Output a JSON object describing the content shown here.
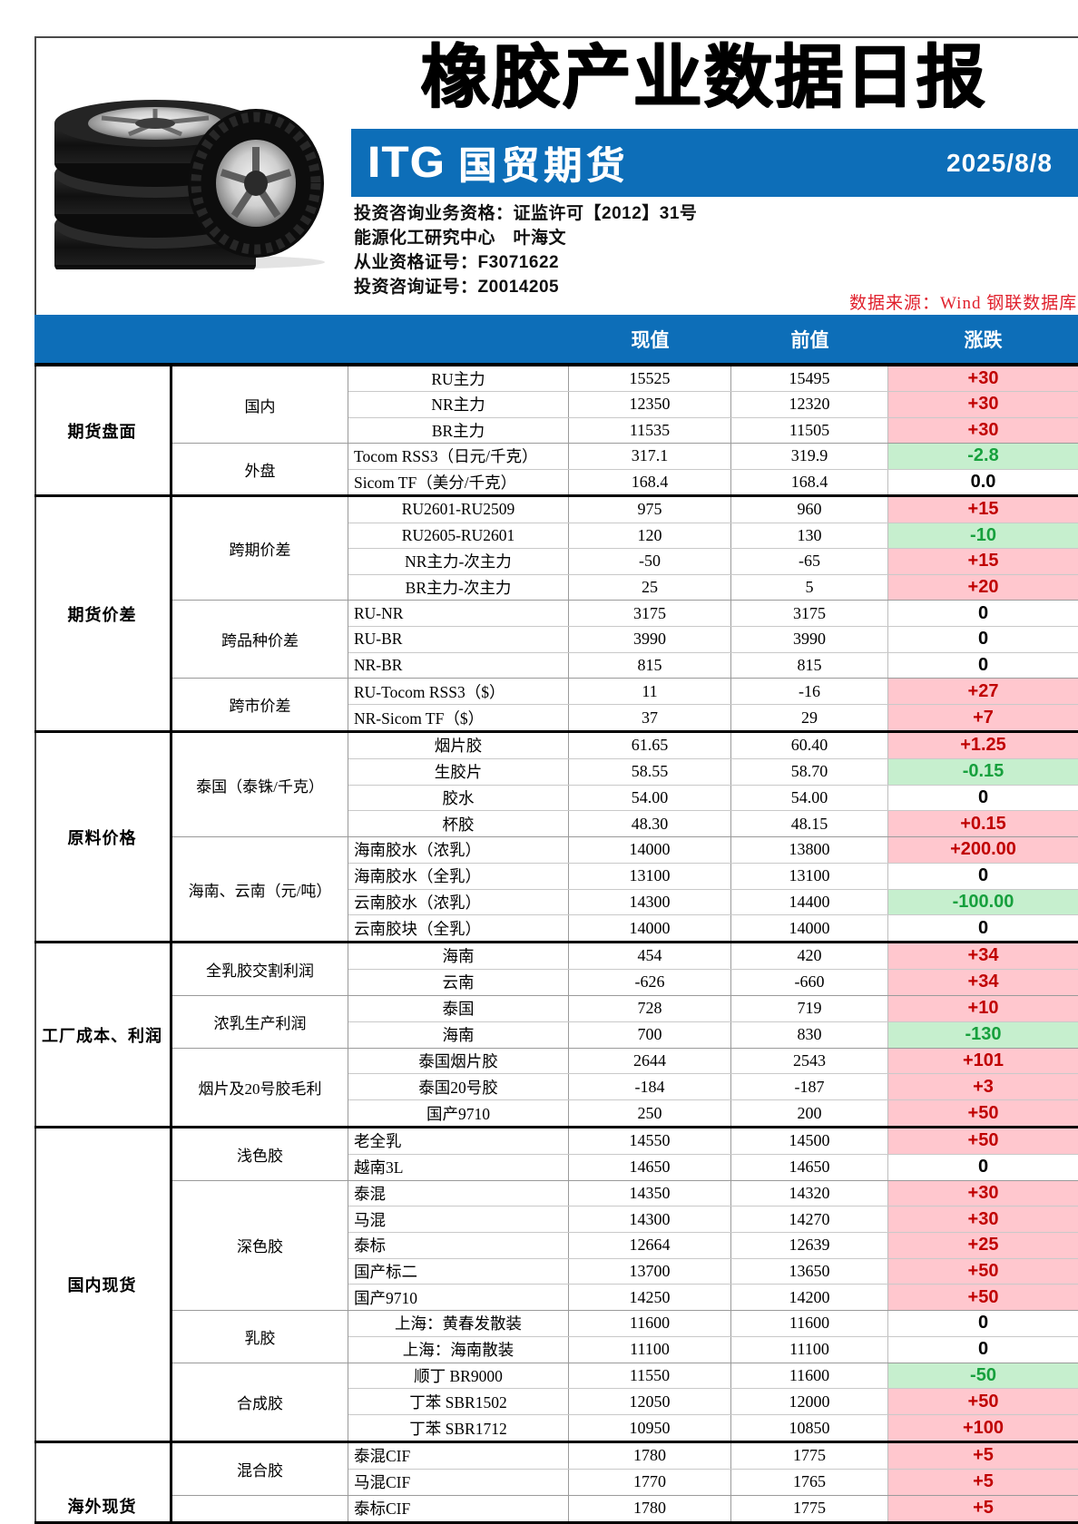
{
  "header": {
    "title": "橡胶产业数据日报",
    "brand": {
      "logo_itg": "ITG",
      "logo_cn": "国贸期货",
      "date": "2025/8/8",
      "bar_color": "#0d6eb8"
    },
    "info_lines": [
      "投资咨询业务资格：证监许可【2012】31号",
      "能源化工研究中心　叶海文",
      "从业资格证号：F3071622",
      "投资咨询证号：Z0014205"
    ],
    "source_note": "数据来源：Wind 钢联数据库"
  },
  "table": {
    "columns": {
      "current": "现值",
      "previous": "前值",
      "change": "涨跌"
    },
    "colors": {
      "header_bg": "#0d6eb8",
      "up_bg": "#ffc7ce",
      "up_text": "#c00000",
      "down_bg": "#c6efce",
      "down_text": "#17a03d",
      "flat_text": "#000000"
    },
    "sections": [
      {
        "label": "期货盘面",
        "groups": [
          {
            "label": "国内",
            "rows": [
              {
                "item": "RU主力",
                "align": "c",
                "cur": "15525",
                "prev": "15495",
                "chg": "+30",
                "dir": "up"
              },
              {
                "item": "NR主力",
                "align": "c",
                "cur": "12350",
                "prev": "12320",
                "chg": "+30",
                "dir": "up"
              },
              {
                "item": "BR主力",
                "align": "c",
                "cur": "11535",
                "prev": "11505",
                "chg": "+30",
                "dir": "up"
              }
            ]
          },
          {
            "label": "外盘",
            "rows": [
              {
                "item": "Tocom RSS3（日元/千克）",
                "align": "l",
                "cur": "317.1",
                "prev": "319.9",
                "chg": "-2.8",
                "dir": "down"
              },
              {
                "item": "Sicom TF（美分/千克）",
                "align": "l",
                "cur": "168.4",
                "prev": "168.4",
                "chg": "0.0",
                "dir": "flat"
              }
            ]
          }
        ]
      },
      {
        "label": "期货价差",
        "groups": [
          {
            "label": "跨期价差",
            "rows": [
              {
                "item": "RU2601-RU2509",
                "align": "c",
                "cur": "975",
                "prev": "960",
                "chg": "+15",
                "dir": "up"
              },
              {
                "item": "RU2605-RU2601",
                "align": "c",
                "cur": "120",
                "prev": "130",
                "chg": "-10",
                "dir": "down"
              },
              {
                "item": "NR主力-次主力",
                "align": "c",
                "cur": "-50",
                "prev": "-65",
                "chg": "+15",
                "dir": "up"
              },
              {
                "item": "BR主力-次主力",
                "align": "c",
                "cur": "25",
                "prev": "5",
                "chg": "+20",
                "dir": "up"
              }
            ]
          },
          {
            "label": "跨品种价差",
            "rows": [
              {
                "item": "RU-NR",
                "align": "l",
                "cur": "3175",
                "prev": "3175",
                "chg": "0",
                "dir": "flat"
              },
              {
                "item": "RU-BR",
                "align": "l",
                "cur": "3990",
                "prev": "3990",
                "chg": "0",
                "dir": "flat"
              },
              {
                "item": "NR-BR",
                "align": "l",
                "cur": "815",
                "prev": "815",
                "chg": "0",
                "dir": "flat"
              }
            ]
          },
          {
            "label": "跨市价差",
            "rows": [
              {
                "item": "RU-Tocom RSS3（$）",
                "align": "l",
                "cur": "11",
                "prev": "-16",
                "chg": "+27",
                "dir": "up"
              },
              {
                "item": "NR-Sicom TF（$）",
                "align": "l",
                "cur": "37",
                "prev": "29",
                "chg": "+7",
                "dir": "up"
              }
            ]
          }
        ]
      },
      {
        "label": "原料价格",
        "groups": [
          {
            "label": "泰国（泰铢/千克）",
            "rows": [
              {
                "item": "烟片胶",
                "align": "c",
                "cur": "61.65",
                "prev": "60.40",
                "chg": "+1.25",
                "dir": "up"
              },
              {
                "item": "生胶片",
                "align": "c",
                "cur": "58.55",
                "prev": "58.70",
                "chg": "-0.15",
                "dir": "down"
              },
              {
                "item": "胶水",
                "align": "c",
                "cur": "54.00",
                "prev": "54.00",
                "chg": "0",
                "dir": "flat"
              },
              {
                "item": "杯胶",
                "align": "c",
                "cur": "48.30",
                "prev": "48.15",
                "chg": "+0.15",
                "dir": "up"
              }
            ]
          },
          {
            "label": "海南、云南（元/吨）",
            "rows": [
              {
                "item": "海南胶水（浓乳）",
                "align": "l",
                "cur": "14000",
                "prev": "13800",
                "chg": "+200.00",
                "dir": "up"
              },
              {
                "item": "海南胶水（全乳）",
                "align": "l",
                "cur": "13100",
                "prev": "13100",
                "chg": "0",
                "dir": "flat"
              },
              {
                "item": "云南胶水（浓乳）",
                "align": "l",
                "cur": "14300",
                "prev": "14400",
                "chg": "-100.00",
                "dir": "down"
              },
              {
                "item": "云南胶块（全乳）",
                "align": "l",
                "cur": "14000",
                "prev": "14000",
                "chg": "0",
                "dir": "flat"
              }
            ]
          }
        ]
      },
      {
        "label": "工厂成本、利润",
        "groups": [
          {
            "label": "全乳胶交割利润",
            "rows": [
              {
                "item": "海南",
                "align": "c",
                "cur": "454",
                "prev": "420",
                "chg": "+34",
                "dir": "up"
              },
              {
                "item": "云南",
                "align": "c",
                "cur": "-626",
                "prev": "-660",
                "chg": "+34",
                "dir": "up"
              }
            ]
          },
          {
            "label": "浓乳生产利润",
            "rows": [
              {
                "item": "泰国",
                "align": "c",
                "cur": "728",
                "prev": "719",
                "chg": "+10",
                "dir": "up"
              },
              {
                "item": "海南",
                "align": "c",
                "cur": "700",
                "prev": "830",
                "chg": "-130",
                "dir": "down"
              }
            ]
          },
          {
            "label": "烟片及20号胶毛利",
            "rows": [
              {
                "item": "泰国烟片胶",
                "align": "c",
                "cur": "2644",
                "prev": "2543",
                "chg": "+101",
                "dir": "up"
              },
              {
                "item": "泰国20号胶",
                "align": "c",
                "cur": "-184",
                "prev": "-187",
                "chg": "+3",
                "dir": "up"
              },
              {
                "item": "国产9710",
                "align": "c",
                "cur": "250",
                "prev": "200",
                "chg": "+50",
                "dir": "up"
              }
            ]
          }
        ]
      },
      {
        "label": "国内现货",
        "groups": [
          {
            "label": "浅色胶",
            "rows": [
              {
                "item": "老全乳",
                "align": "l",
                "cur": "14550",
                "prev": "14500",
                "chg": "+50",
                "dir": "up"
              },
              {
                "item": "越南3L",
                "align": "l",
                "cur": "14650",
                "prev": "14650",
                "chg": "0",
                "dir": "flat"
              }
            ]
          },
          {
            "label": "深色胶",
            "rows": [
              {
                "item": "泰混",
                "align": "l",
                "cur": "14350",
                "prev": "14320",
                "chg": "+30",
                "dir": "up"
              },
              {
                "item": "马混",
                "align": "l",
                "cur": "14300",
                "prev": "14270",
                "chg": "+30",
                "dir": "up"
              },
              {
                "item": "泰标",
                "align": "l",
                "cur": "12664",
                "prev": "12639",
                "chg": "+25",
                "dir": "up"
              },
              {
                "item": "国产标二",
                "align": "l",
                "cur": "13700",
                "prev": "13650",
                "chg": "+50",
                "dir": "up"
              },
              {
                "item": "国产9710",
                "align": "l",
                "cur": "14250",
                "prev": "14200",
                "chg": "+50",
                "dir": "up"
              }
            ]
          },
          {
            "label": "乳胶",
            "rows": [
              {
                "item": "上海：黄春发散装",
                "align": "c",
                "cur": "11600",
                "prev": "11600",
                "chg": "0",
                "dir": "flat"
              },
              {
                "item": "上海：海南散装",
                "align": "c",
                "cur": "11100",
                "prev": "11100",
                "chg": "0",
                "dir": "flat"
              }
            ]
          },
          {
            "label": "合成胶",
            "rows": [
              {
                "item": "顺丁 BR9000",
                "align": "c",
                "cur": "11550",
                "prev": "11600",
                "chg": "-50",
                "dir": "down"
              },
              {
                "item": "丁苯 SBR1502",
                "align": "c",
                "cur": "12050",
                "prev": "12000",
                "chg": "+50",
                "dir": "up"
              },
              {
                "item": "丁苯 SBR1712",
                "align": "c",
                "cur": "10950",
                "prev": "10850",
                "chg": "+100",
                "dir": "up"
              }
            ]
          }
        ]
      },
      {
        "label": "海外现货",
        "groups": [
          {
            "label": "混合胶",
            "rows": [
              {
                "item": "泰混CIF",
                "align": "l",
                "cur": "1780",
                "prev": "1775",
                "chg": "+5",
                "dir": "up"
              },
              {
                "item": "马混CIF",
                "align": "l",
                "cur": "1770",
                "prev": "1765",
                "chg": "+5",
                "dir": "up"
              }
            ]
          },
          {
            "label": "",
            "rows": [
              {
                "item": "泰标CIF",
                "align": "l",
                "cur": "1780",
                "prev": "1775",
                "chg": "+5",
                "dir": "up"
              }
            ]
          }
        ]
      }
    ]
  }
}
